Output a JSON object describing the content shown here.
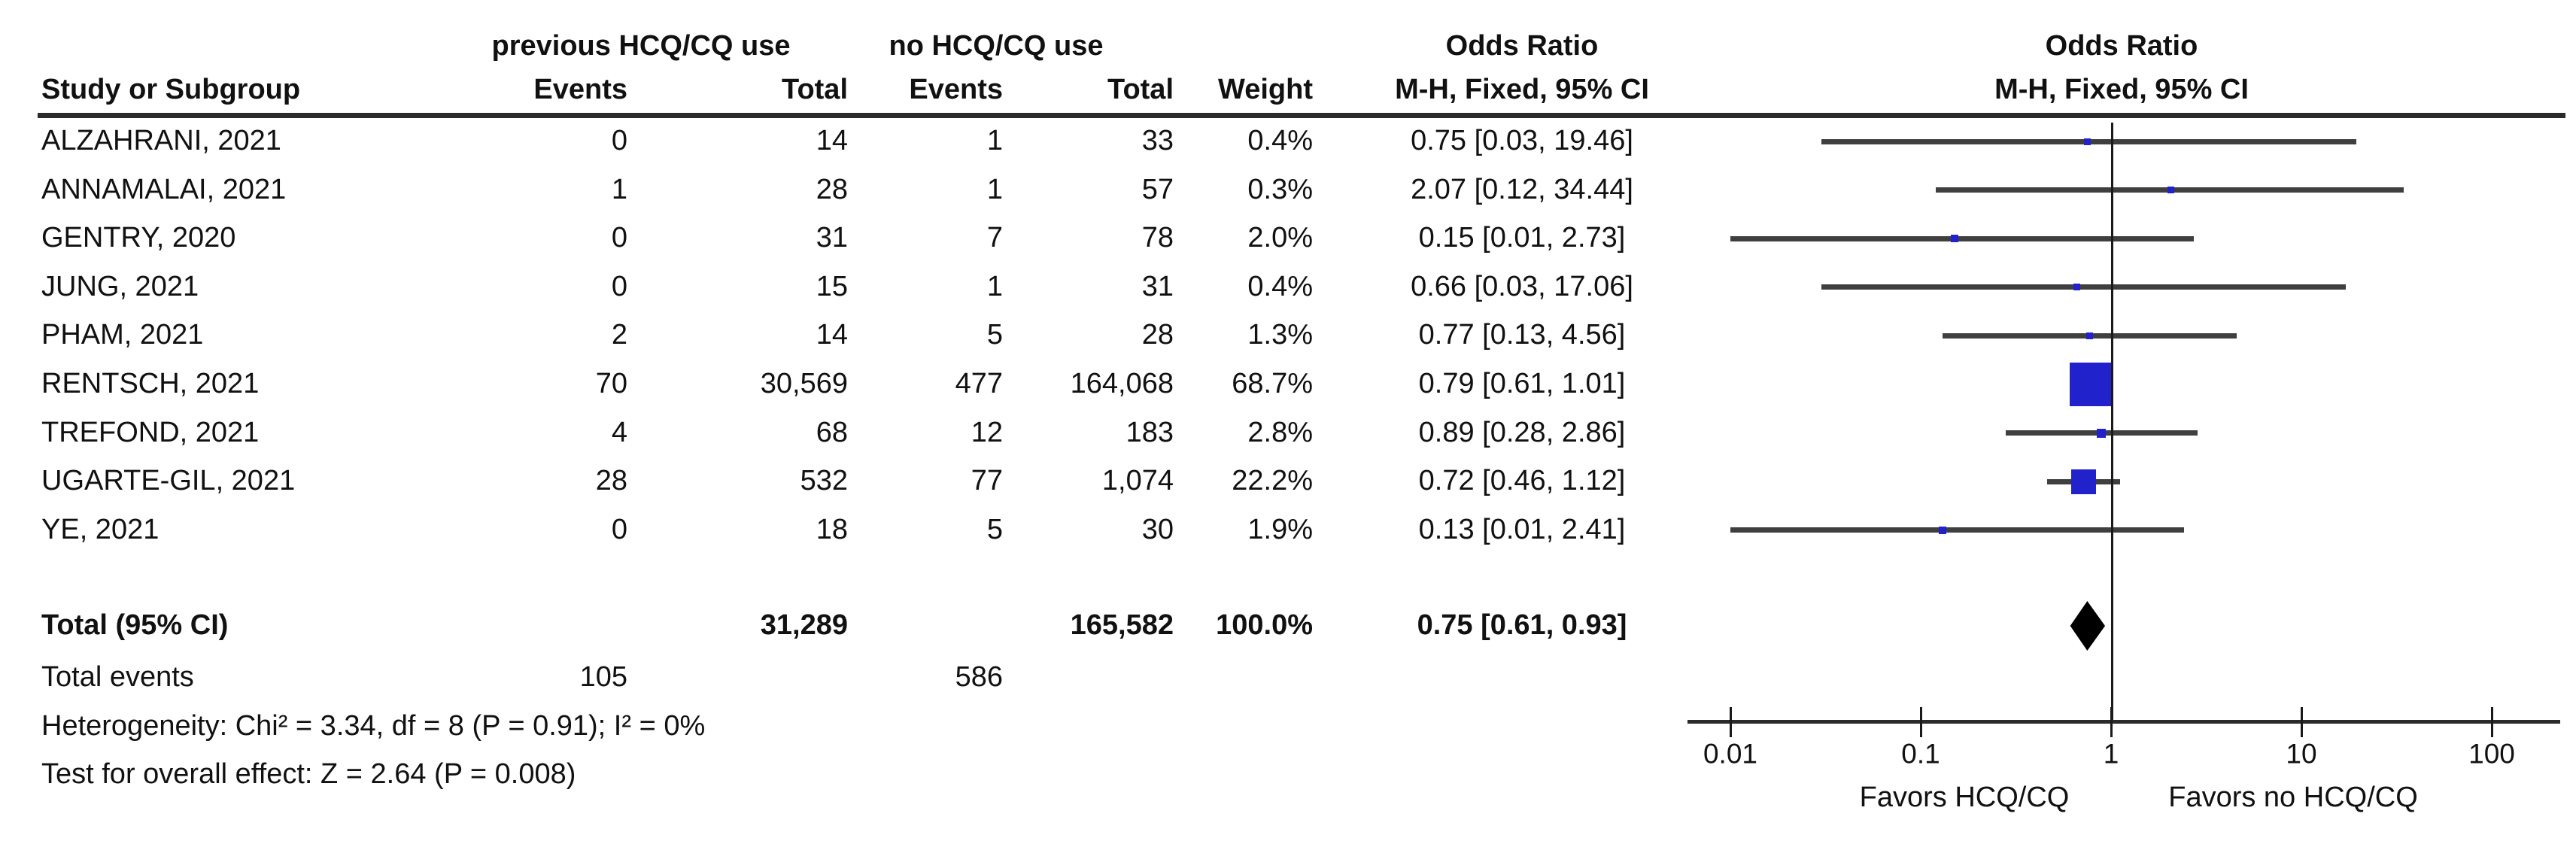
{
  "header": {
    "group1": "previous HCQ/CQ use",
    "group2": "no HCQ/CQ use",
    "or_left_title": "Odds Ratio",
    "or_left_subtitle": "M-H, Fixed, 95% CI",
    "or_right_title": "Odds Ratio",
    "or_right_subtitle": "M-H, Fixed, 95% CI",
    "col_study": "Study or Subgroup",
    "col_events": "Events",
    "col_total": "Total",
    "col_weight": "Weight"
  },
  "chart_data": {
    "type": "forest",
    "x_scale": "log10",
    "xlim": [
      0.01,
      100
    ],
    "axis_ticks": [
      0.01,
      0.1,
      1,
      10,
      100
    ],
    "favors_left": "Favors HCQ/CQ",
    "favors_right": "Favors no HCQ/CQ",
    "marker_color": "#2222cc",
    "ci_line_color": "#3f3f3f",
    "diamond_color": "#000000",
    "studies": [
      {
        "name": "ALZAHRANI, 2021",
        "events1": "0",
        "total1": "14",
        "events2": "1",
        "total2": "33",
        "weight": "0.4%",
        "weight_pct": 0.4,
        "ci_label": "0.75 [0.03, 19.46]",
        "or": 0.75,
        "lo": 0.03,
        "hi": 19.46
      },
      {
        "name": "ANNAMALAI, 2021",
        "events1": "1",
        "total1": "28",
        "events2": "1",
        "total2": "57",
        "weight": "0.3%",
        "weight_pct": 0.3,
        "ci_label": "2.07 [0.12, 34.44]",
        "or": 2.07,
        "lo": 0.12,
        "hi": 34.44
      },
      {
        "name": "GENTRY, 2020",
        "events1": "0",
        "total1": "31",
        "events2": "7",
        "total2": "78",
        "weight": "2.0%",
        "weight_pct": 2.0,
        "ci_label": "0.15 [0.01, 2.73]",
        "or": 0.15,
        "lo": 0.01,
        "hi": 2.73
      },
      {
        "name": "JUNG, 2021",
        "events1": "0",
        "total1": "15",
        "events2": "1",
        "total2": "31",
        "weight": "0.4%",
        "weight_pct": 0.4,
        "ci_label": "0.66 [0.03, 17.06]",
        "or": 0.66,
        "lo": 0.03,
        "hi": 17.06
      },
      {
        "name": "PHAM, 2021",
        "events1": "2",
        "total1": "14",
        "events2": "5",
        "total2": "28",
        "weight": "1.3%",
        "weight_pct": 1.3,
        "ci_label": "0.77 [0.13, 4.56]",
        "or": 0.77,
        "lo": 0.13,
        "hi": 4.56
      },
      {
        "name": "RENTSCH, 2021",
        "events1": "70",
        "total1": "30,569",
        "events2": "477",
        "total2": "164,068",
        "weight": "68.7%",
        "weight_pct": 68.7,
        "ci_label": "0.79 [0.61, 1.01]",
        "or": 0.79,
        "lo": 0.61,
        "hi": 1.01
      },
      {
        "name": "TREFOND, 2021",
        "events1": "4",
        "total1": "68",
        "events2": "12",
        "total2": "183",
        "weight": "2.8%",
        "weight_pct": 2.8,
        "ci_label": "0.89 [0.28, 2.86]",
        "or": 0.89,
        "lo": 0.28,
        "hi": 2.86
      },
      {
        "name": "UGARTE-GIL, 2021",
        "events1": "28",
        "total1": "532",
        "events2": "77",
        "total2": "1,074",
        "weight": "22.2%",
        "weight_pct": 22.2,
        "ci_label": "0.72 [0.46, 1.12]",
        "or": 0.72,
        "lo": 0.46,
        "hi": 1.12
      },
      {
        "name": "YE, 2021",
        "events1": "0",
        "total1": "18",
        "events2": "5",
        "total2": "30",
        "weight": "1.9%",
        "weight_pct": 1.9,
        "ci_label": "0.13 [0.01, 2.41]",
        "or": 0.13,
        "lo": 0.01,
        "hi": 2.41
      }
    ],
    "total": {
      "label": "Total (95% CI)",
      "total1": "31,289",
      "total2": "165,582",
      "weight": "100.0%",
      "ci_label": "0.75 [0.61, 0.93]",
      "or": 0.75,
      "lo": 0.61,
      "hi": 0.93
    },
    "total_events": {
      "label": "Total events",
      "events1": "105",
      "events2": "586"
    },
    "heterogeneity": "Heterogeneity: Chi² = 3.34, df = 8 (P = 0.91); I² = 0%",
    "overall_effect": "Test for overall effect: Z = 2.64 (P = 0.008)"
  }
}
